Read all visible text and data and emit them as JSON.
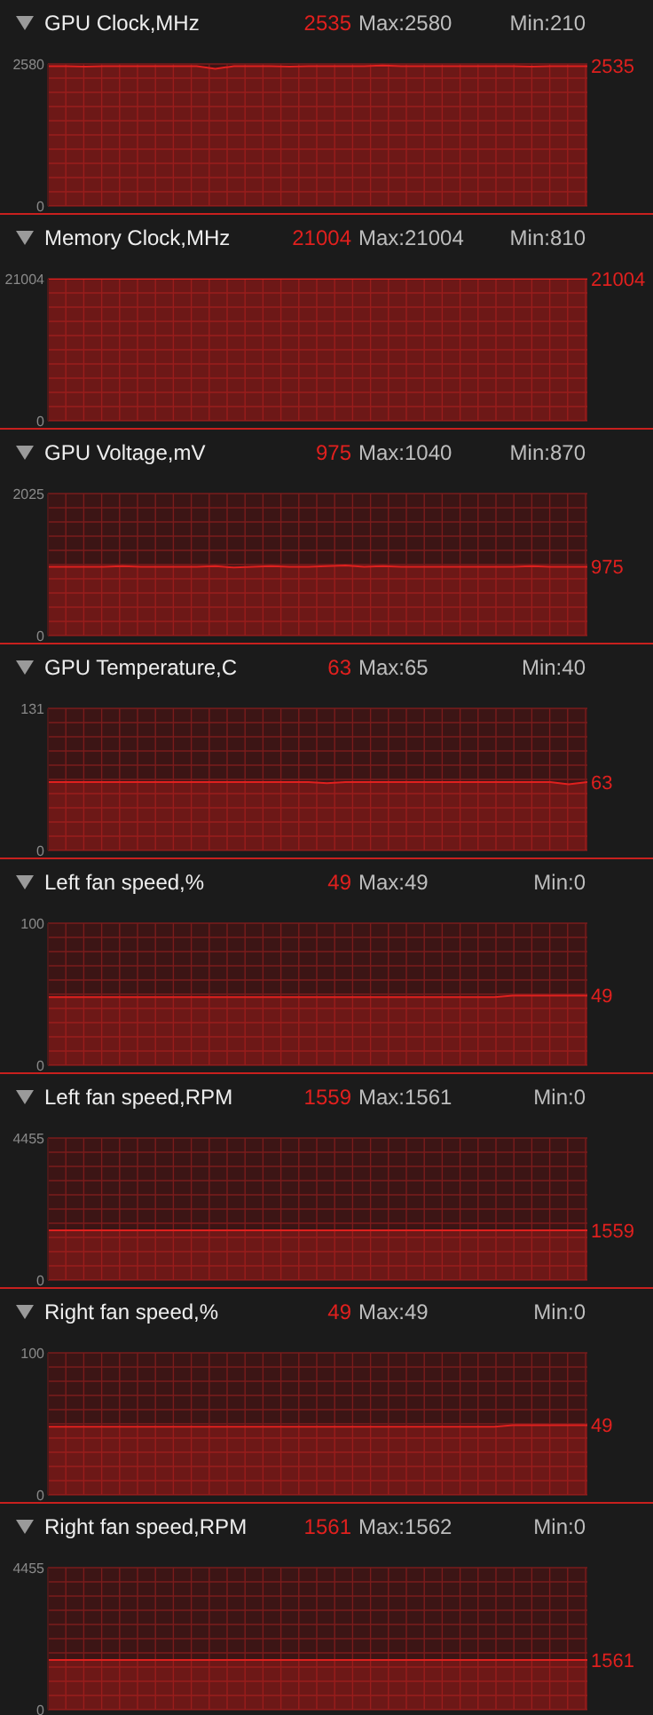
{
  "chart_data": [
    {
      "type": "area",
      "title": "GPU Clock,MHz",
      "categories": [
        null,
        null,
        null,
        null,
        null,
        null,
        null,
        null,
        null,
        null,
        null,
        null,
        null,
        null,
        null,
        null,
        null,
        null,
        null,
        null,
        null,
        null,
        null,
        null,
        null,
        null,
        null,
        null,
        null,
        null
      ],
      "series": [
        {
          "color": "#e0201e",
          "values": [
            2540,
            2540,
            2530,
            2540,
            2540,
            2540,
            2540,
            2540,
            2540,
            2490,
            2540,
            2540,
            2540,
            2530,
            2540,
            2540,
            2540,
            2540,
            2550,
            2540,
            2540,
            2540,
            2540,
            2540,
            2540,
            2540,
            2530,
            2540,
            2540,
            2540
          ]
        }
      ],
      "ylim": [
        0,
        2580
      ],
      "yticks": [
        0,
        2580
      ],
      "grid": true,
      "annotations": [
        "2535",
        "Max:2580",
        "Min:210",
        "2535"
      ]
    },
    {
      "type": "area",
      "title": "Memory Clock,MHz",
      "categories": [
        null,
        null,
        null,
        null,
        null,
        null,
        null,
        null,
        null,
        null,
        null,
        null,
        null,
        null,
        null,
        null,
        null,
        null,
        null,
        null,
        null,
        null,
        null,
        null,
        null,
        null,
        null,
        null,
        null,
        null
      ],
      "series": [
        {
          "color": "#e0201e",
          "values": [
            21000,
            21000,
            21000,
            21000,
            21000,
            21000,
            21000,
            21000,
            21000,
            21000,
            21000,
            21000,
            21000,
            21000,
            21000,
            21000,
            21000,
            21000,
            21000,
            21000,
            21000,
            21000,
            21000,
            21000,
            21000,
            21000,
            21000,
            21000,
            21000,
            21000
          ]
        }
      ],
      "ylim": [
        0,
        21004
      ],
      "yticks": [
        0,
        21004
      ],
      "grid": true,
      "annotations": [
        "21004",
        "Max:21004",
        "Min:810",
        "21004"
      ]
    },
    {
      "type": "area",
      "title": "GPU Voltage,mV",
      "categories": [
        null,
        null,
        null,
        null,
        null,
        null,
        null,
        null,
        null,
        null,
        null,
        null,
        null,
        null,
        null,
        null,
        null,
        null,
        null,
        null,
        null,
        null,
        null,
        null,
        null,
        null,
        null,
        null,
        null,
        null
      ],
      "series": [
        {
          "color": "#e0201e",
          "values": [
            980,
            980,
            980,
            980,
            990,
            980,
            980,
            980,
            980,
            990,
            970,
            980,
            990,
            980,
            980,
            990,
            1000,
            980,
            990,
            980,
            980,
            980,
            980,
            980,
            980,
            980,
            990,
            980,
            980,
            980
          ]
        }
      ],
      "ylim": [
        0,
        2025
      ],
      "yticks": [
        0,
        2025
      ],
      "grid": true,
      "annotations": [
        "975",
        "Max:1040",
        "Min:870",
        "975"
      ]
    },
    {
      "type": "area",
      "title": "GPU Temperature,C",
      "categories": [
        null,
        null,
        null,
        null,
        null,
        null,
        null,
        null,
        null,
        null,
        null,
        null,
        null,
        null,
        null,
        null,
        null,
        null,
        null,
        null,
        null,
        null,
        null,
        null,
        null,
        null,
        null,
        null,
        null,
        null
      ],
      "series": [
        {
          "color": "#e0201e",
          "values": [
            63,
            63,
            63,
            63,
            63,
            63,
            63,
            63,
            63,
            63,
            63,
            63,
            63,
            63,
            63,
            62,
            63,
            63,
            63,
            63,
            63,
            63,
            63,
            63,
            63,
            63,
            63,
            63,
            61,
            63
          ]
        }
      ],
      "ylim": [
        0,
        131
      ],
      "yticks": [
        0,
        131
      ],
      "grid": true,
      "annotations": [
        "63",
        "Max:65",
        "Min:40",
        "63"
      ]
    },
    {
      "type": "area",
      "title": "Left fan speed,%",
      "categories": [
        null,
        null,
        null,
        null,
        null,
        null,
        null,
        null,
        null,
        null,
        null,
        null,
        null,
        null,
        null,
        null,
        null,
        null,
        null,
        null,
        null,
        null,
        null,
        null,
        null,
        null,
        null,
        null,
        null,
        null
      ],
      "series": [
        {
          "color": "#e0201e",
          "values": [
            48,
            48,
            48,
            48,
            48,
            48,
            48,
            48,
            48,
            48,
            48,
            48,
            48,
            48,
            48,
            48,
            48,
            48,
            48,
            48,
            48,
            48,
            48,
            48,
            48,
            49,
            49,
            49,
            49,
            49
          ]
        }
      ],
      "ylim": [
        0,
        100
      ],
      "yticks": [
        0,
        100
      ],
      "grid": true,
      "annotations": [
        "49",
        "Max:49",
        "Min:0",
        "49"
      ]
    },
    {
      "type": "area",
      "title": "Left fan speed,RPM",
      "categories": [
        null,
        null,
        null,
        null,
        null,
        null,
        null,
        null,
        null,
        null,
        null,
        null,
        null,
        null,
        null,
        null,
        null,
        null,
        null,
        null,
        null,
        null,
        null,
        null,
        null,
        null,
        null,
        null,
        null,
        null
      ],
      "series": [
        {
          "color": "#e0201e",
          "values": [
            1560,
            1560,
            1560,
            1560,
            1560,
            1560,
            1560,
            1560,
            1560,
            1560,
            1560,
            1560,
            1560,
            1560,
            1560,
            1560,
            1560,
            1560,
            1560,
            1560,
            1560,
            1560,
            1560,
            1560,
            1560,
            1560,
            1560,
            1560,
            1560,
            1560
          ]
        }
      ],
      "ylim": [
        0,
        4455
      ],
      "yticks": [
        0,
        4455
      ],
      "grid": true,
      "annotations": [
        "1559",
        "Max:1561",
        "Min:0",
        "1559"
      ]
    },
    {
      "type": "area",
      "title": "Right fan speed,%",
      "categories": [
        null,
        null,
        null,
        null,
        null,
        null,
        null,
        null,
        null,
        null,
        null,
        null,
        null,
        null,
        null,
        null,
        null,
        null,
        null,
        null,
        null,
        null,
        null,
        null,
        null,
        null,
        null,
        null,
        null,
        null
      ],
      "series": [
        {
          "color": "#e0201e",
          "values": [
            48,
            48,
            48,
            48,
            48,
            48,
            48,
            48,
            48,
            48,
            48,
            48,
            48,
            48,
            48,
            48,
            48,
            48,
            48,
            48,
            48,
            48,
            48,
            48,
            48,
            49,
            49,
            49,
            49,
            49
          ]
        }
      ],
      "ylim": [
        0,
        100
      ],
      "yticks": [
        0,
        100
      ],
      "grid": true,
      "annotations": [
        "49",
        "Max:49",
        "Min:0",
        "49"
      ]
    },
    {
      "type": "area",
      "title": "Right fan speed,RPM",
      "categories": [
        null,
        null,
        null,
        null,
        null,
        null,
        null,
        null,
        null,
        null,
        null,
        null,
        null,
        null,
        null,
        null,
        null,
        null,
        null,
        null,
        null,
        null,
        null,
        null,
        null,
        null,
        null,
        null,
        null,
        null
      ],
      "series": [
        {
          "color": "#e0201e",
          "values": [
            1560,
            1560,
            1560,
            1560,
            1560,
            1560,
            1560,
            1560,
            1560,
            1560,
            1560,
            1560,
            1560,
            1560,
            1560,
            1560,
            1560,
            1560,
            1560,
            1560,
            1560,
            1560,
            1560,
            1560,
            1560,
            1560,
            1560,
            1560,
            1560,
            1560
          ]
        }
      ],
      "ylim": [
        0,
        4455
      ],
      "yticks": [
        0,
        4455
      ],
      "grid": true,
      "annotations": [
        "1561",
        "Max:1562",
        "Min:0",
        "1561"
      ]
    }
  ]
}
